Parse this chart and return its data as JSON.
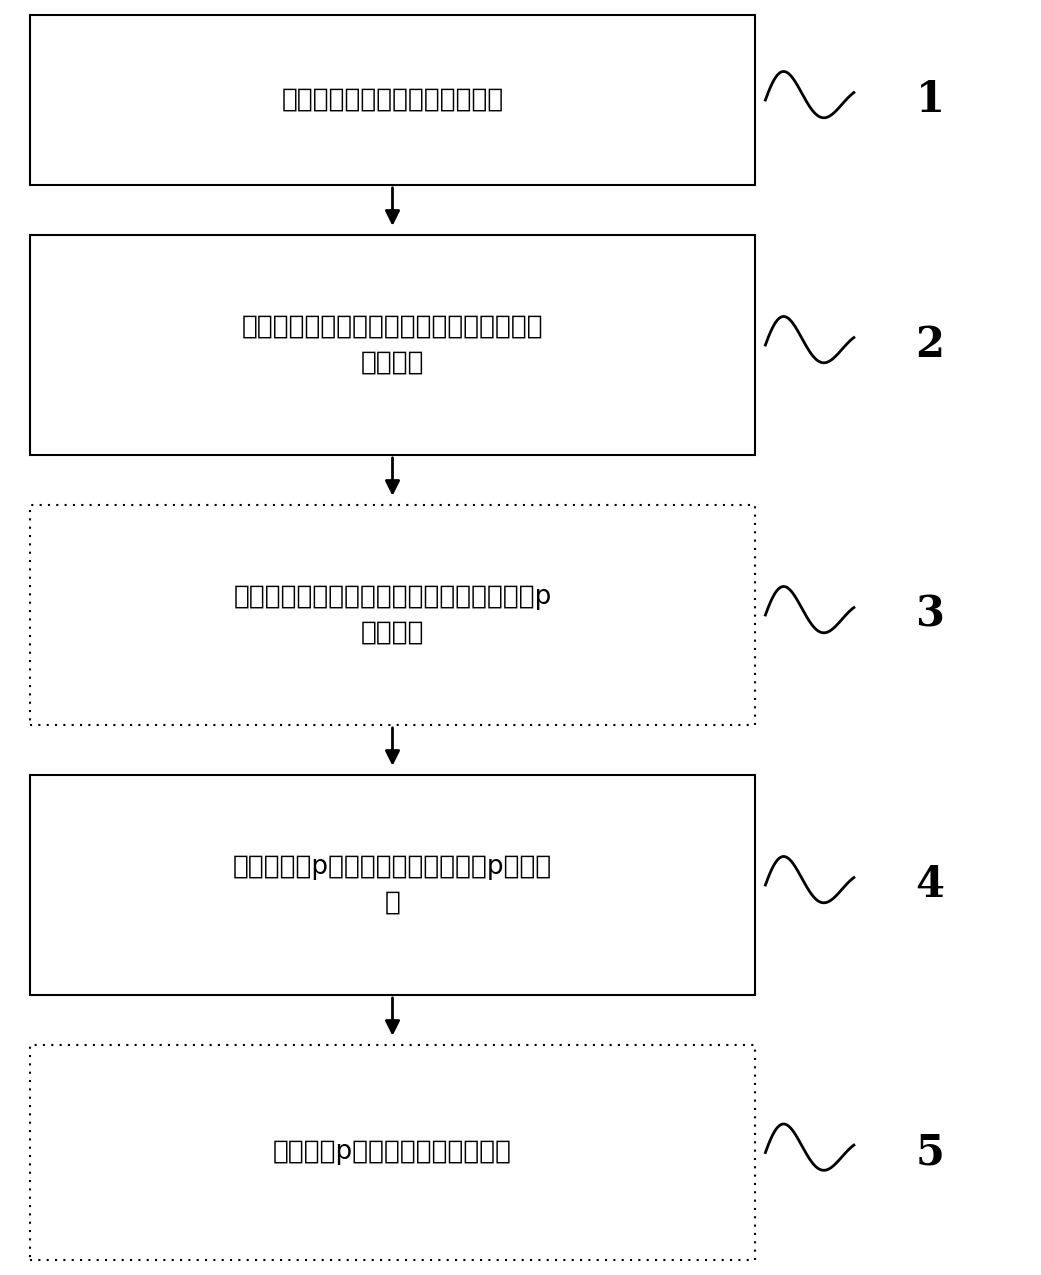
{
  "steps": [
    "在衬底上生长低温氮化镓缓冲层",
    "在低温氮化镓缓冲层上生长高温非故意掺杂\n氮化镓层",
    "在高温非故意掺杂氮化镓层上生长中度掺镁p\n型氮化镓",
    "在中度掺镁p型氮化镓上生长重掺镁p型氮化\n镓",
    "在重掺镁p型氮化镓上生长金属层"
  ],
  "step_numbers": [
    "1",
    "2",
    "3",
    "4",
    "5"
  ],
  "box_border_styles": [
    "solid",
    "solid",
    "dotted",
    "solid",
    "dotted"
  ],
  "background_color": "#ffffff",
  "box_facecolor": "#ffffff",
  "box_edgecolor": "#000000",
  "text_color": "#000000",
  "arrow_color": "#000000",
  "number_color": "#000000",
  "fig_width": 10.41,
  "fig_height": 12.75,
  "font_size": 19
}
